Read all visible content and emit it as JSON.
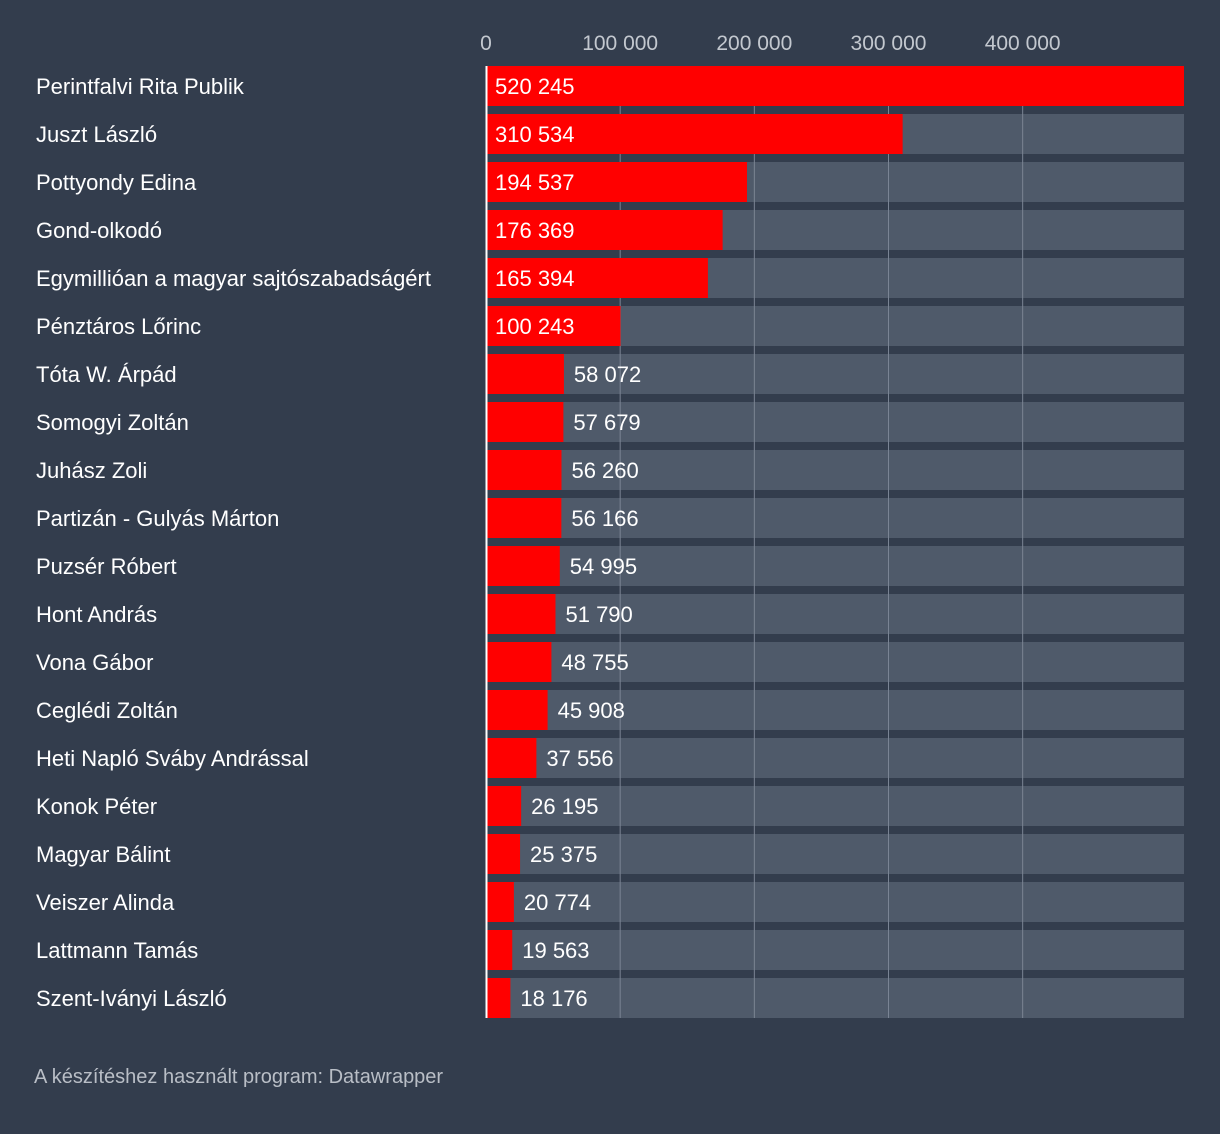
{
  "chart_data": {
    "type": "bar",
    "orientation": "horizontal",
    "categories": [
      "Perintfalvi Rita Publik",
      "Juszt László",
      "Pottyondy Edina",
      "Gond-olkodó",
      "Egymillióan a magyar sajtószabadságért",
      "Pénztáros Lőrinc",
      "Tóta W. Árpád",
      "Somogyi Zoltán",
      "Juhász Zoli",
      "Partizán - Gulyás Márton",
      "Puzsér Róbert",
      "Hont András",
      "Vona Gábor",
      "Ceglédi Zoltán",
      "Heti Napló Sváby Andrással",
      "Konok Péter",
      "Magyar Bálint",
      "Veiszer Alinda",
      "Lattmann Tamás",
      "Szent-Iványi László"
    ],
    "values": [
      520245,
      310534,
      194537,
      176369,
      165394,
      100243,
      58072,
      57679,
      56260,
      56166,
      54995,
      51790,
      48755,
      45908,
      37556,
      26195,
      25375,
      20774,
      19563,
      18176
    ],
    "value_labels": [
      "520 245",
      "310 534",
      "194 537",
      "176 369",
      "165 394",
      "100 243",
      "58 072",
      "57 679",
      "56 260",
      "56 166",
      "54 995",
      "51 790",
      "48 755",
      "45 908",
      "37 556",
      "26 195",
      "25 375",
      "20 774",
      "19 563",
      "18 176"
    ],
    "x_ticks": [
      0,
      100000,
      200000,
      300000,
      400000
    ],
    "x_tick_labels": [
      "0",
      "100 000",
      "200 000",
      "300 000",
      "400 000"
    ],
    "xlim": [
      0,
      520245
    ],
    "title": "",
    "xlabel": "",
    "ylabel": "",
    "grid": true,
    "colors": {
      "background": "#333d4d",
      "bar": "#ff0000",
      "track": "#4f5a6a",
      "gridline": "#7b8594",
      "axis": "#ffffff",
      "label": "#ffffff",
      "tick_label": "#c3c8cf"
    }
  },
  "footer": {
    "credit": "A készítéshez használt program: Datawrapper"
  }
}
